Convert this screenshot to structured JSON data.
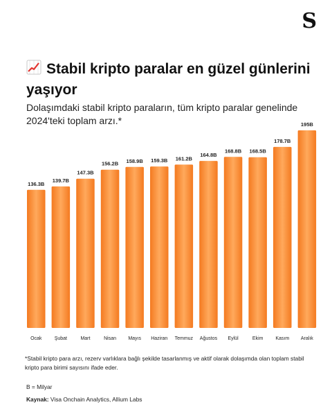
{
  "header": {
    "logo": "S",
    "title_icon": "chart-increasing-icon"
  },
  "chart_data": {
    "type": "bar",
    "title": "Stabil kripto paralar en güzel günlerini yaşıyor",
    "subtitle": "Dolaşımdaki stabil kripto paraların, tüm kripto paralar genelinde 2024'teki toplam arzı.*",
    "categories": [
      "Ocak",
      "Şubat",
      "Mart",
      "Nisan",
      "Mayıs",
      "Haziran",
      "Temmuz",
      "Ağustos",
      "Eylül",
      "Ekim",
      "Kasım",
      "Aralık"
    ],
    "values": [
      136.3,
      139.7,
      147.3,
      156.2,
      158.9,
      159.3,
      161.2,
      164.8,
      168.8,
      168.5,
      178.7,
      195
    ],
    "value_labels": [
      "136.3B",
      "139.7B",
      "147.3B",
      "156.2B",
      "158.9B",
      "159.3B",
      "161.2B",
      "164.8B",
      "168.8B",
      "168.5B",
      "178.7B",
      "195B"
    ],
    "ylim": [
      0,
      195
    ],
    "grid": false,
    "bar_color": "#F47A20",
    "bar_highlight": "#FFA95C"
  },
  "footer": {
    "note": "*Stabil kripto para arzı, rezerv varlıklara bağlı şekilde tasarlanmış ve aktif olarak dolaşımda olan toplam stabil kripto para birimi sayısını ifade eder.",
    "legend": "B = Milyar",
    "source_label": "Kaynak:",
    "source_text": "Visa Onchain Analytics, Allium Labs"
  }
}
